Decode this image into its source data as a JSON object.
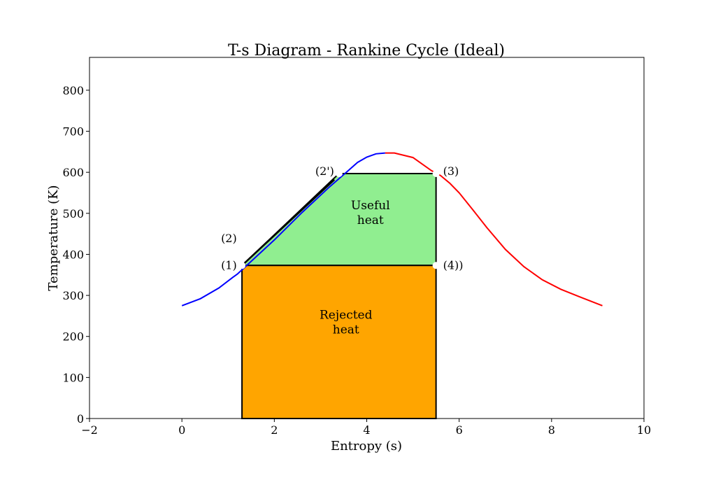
{
  "chart_data": {
    "type": "area",
    "title": "T-s Diagram - Rankine Cycle (Ideal)",
    "xlabel": "Entropy (s)",
    "ylabel": "Temperature (K)",
    "xlim": [
      -2,
      10
    ],
    "ylim": [
      0,
      880
    ],
    "xticks": [
      -2,
      0,
      2,
      4,
      6,
      8,
      10
    ],
    "xtick_labels": [
      "−2",
      "0",
      "2",
      "4",
      "6",
      "8",
      "10"
    ],
    "yticks": [
      0,
      100,
      200,
      300,
      400,
      500,
      600,
      700,
      800
    ],
    "ytick_labels": [
      "0",
      "100",
      "200",
      "300",
      "400",
      "500",
      "600",
      "700",
      "800"
    ],
    "grid": false,
    "colors": {
      "saturated_liquid": "#0000ff",
      "saturated_vapor": "#ff0000",
      "useful_heat": "#90ee90",
      "rejected_heat": "#ffa500",
      "outline": "#000000"
    },
    "saturation_curve": {
      "liquid": [
        [
          0,
          275
        ],
        [
          0.4,
          292
        ],
        [
          0.8,
          318
        ],
        [
          1.1,
          344
        ],
        [
          1.2,
          352
        ],
        [
          2.0,
          435
        ],
        [
          2.6,
          502
        ],
        [
          3.2,
          565
        ],
        [
          3.6,
          604
        ],
        [
          3.8,
          624
        ],
        [
          4.0,
          637
        ],
        [
          4.2,
          645
        ],
        [
          4.4,
          647
        ]
      ],
      "vapor": [
        [
          4.4,
          647
        ],
        [
          4.6,
          647
        ],
        [
          5.0,
          636
        ],
        [
          5.4,
          604
        ],
        [
          5.6,
          592
        ],
        [
          5.8,
          573
        ],
        [
          6.0,
          550
        ],
        [
          6.3,
          508
        ],
        [
          6.6,
          465
        ],
        [
          7.0,
          412
        ],
        [
          7.4,
          370
        ],
        [
          7.8,
          338
        ],
        [
          8.2,
          315
        ],
        [
          8.6,
          297
        ],
        [
          9.1,
          275
        ]
      ]
    },
    "regions": [
      {
        "label_lines": [
          "Useful",
          "heat"
        ],
        "polygon": [
          [
            1.3,
            373
          ],
          [
            3.4,
            597
          ],
          [
            5.5,
            597
          ],
          [
            5.5,
            373
          ]
        ]
      },
      {
        "label_lines": [
          "Rejected",
          "heat"
        ],
        "polygon": [
          [
            1.3,
            0
          ],
          [
            1.3,
            373
          ],
          [
            5.5,
            373
          ],
          [
            5.5,
            0
          ]
        ]
      }
    ],
    "points": [
      {
        "label": "(1)",
        "x": 1.3,
        "y": 373
      },
      {
        "label": "(2)",
        "x": 1.3,
        "y": 438
      },
      {
        "label": "(2')",
        "x": 3.4,
        "y": 597
      },
      {
        "label": "(3)",
        "x": 5.5,
        "y": 597
      },
      {
        "label": "(4))",
        "x": 5.5,
        "y": 373
      }
    ]
  }
}
